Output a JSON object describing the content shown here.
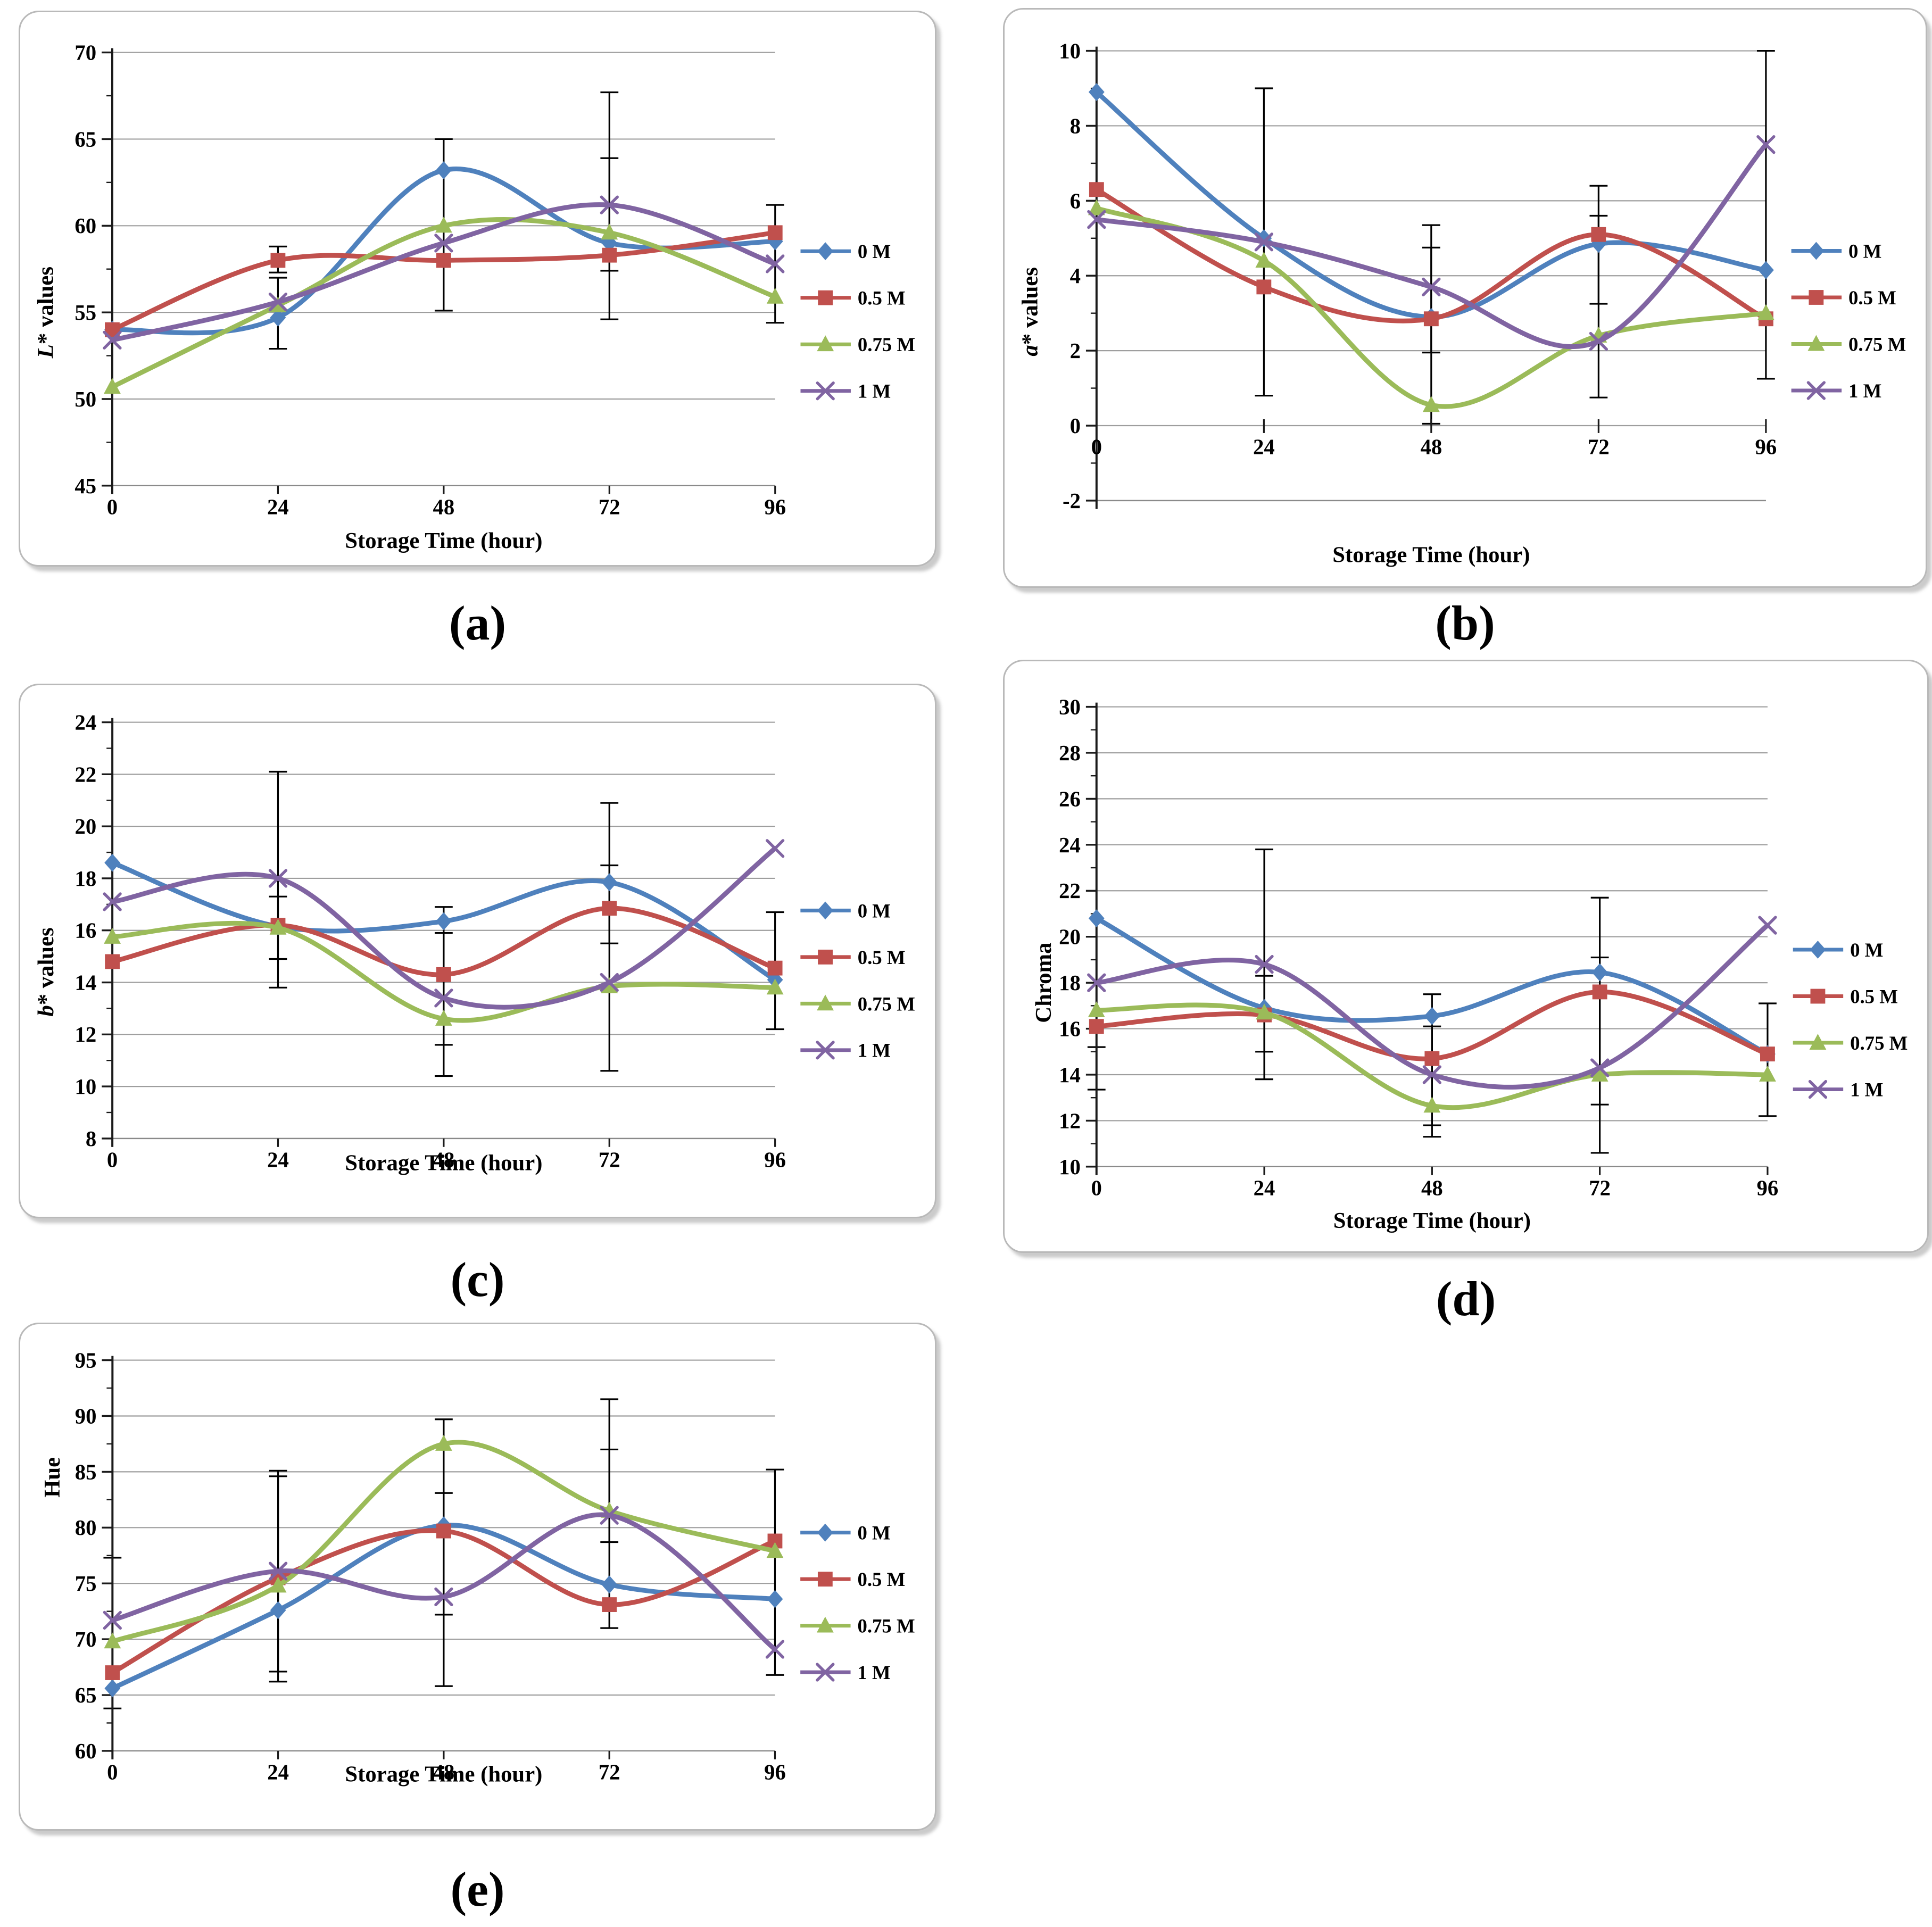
{
  "figure": {
    "background": "#ffffff",
    "series_colors": {
      "0 M": "#4F81BD",
      "0.5 M": "#C0504D",
      "0.75 M": "#9BBB59",
      "1 M": "#8064A2"
    },
    "error_bar_color": "#000000",
    "gridline_color": "#9e9e9e",
    "axis_color": "#1a1a1a"
  },
  "chart_data": [
    {
      "id": "a",
      "panel_label": "(a)",
      "type": "line",
      "x": [
        0,
        24,
        48,
        72,
        96
      ],
      "xlabel": "Storage Time (hour)",
      "ylabel": "L* values",
      "ylabel_italic_first": true,
      "ylim": [
        45,
        70
      ],
      "ytick_step": 5,
      "xaxis_at": null,
      "grid": true,
      "legend_position": "right",
      "series": [
        {
          "name": "0 M",
          "marker": "diamond",
          "color": "#4F81BD",
          "values": [
            54.0,
            54.7,
            63.2,
            59.0,
            59.1
          ]
        },
        {
          "name": "0.5 M",
          "marker": "square",
          "color": "#C0504D",
          "values": [
            54.0,
            58.0,
            58.0,
            58.3,
            59.6
          ]
        },
        {
          "name": "0.75 M",
          "marker": "triangle",
          "color": "#9BBB59",
          "values": [
            50.7,
            55.4,
            60.0,
            59.6,
            55.9
          ]
        },
        {
          "name": "1 M",
          "marker": "x",
          "color": "#8064A2",
          "values": [
            53.4,
            55.6,
            59.0,
            61.2,
            57.8
          ]
        }
      ],
      "error_bars": [
        [
          24,
          52.9,
          57.0
        ],
        [
          24,
          57.3,
          58.8
        ],
        [
          48,
          55.1,
          65.0
        ],
        [
          72,
          54.6,
          67.7
        ],
        [
          72,
          57.4,
          63.9
        ],
        [
          96,
          54.4,
          61.2
        ]
      ]
    },
    {
      "id": "b",
      "panel_label": "(b)",
      "type": "line",
      "x": [
        0,
        24,
        48,
        72,
        96
      ],
      "xlabel": "Storage Time (hour)",
      "ylabel": "a* values",
      "ylabel_italic_first": true,
      "ylim": [
        -2,
        10
      ],
      "ytick_step": 2,
      "xaxis_at": 0,
      "grid": true,
      "legend_position": "right",
      "series": [
        {
          "name": "0 M",
          "marker": "diamond",
          "color": "#4F81BD",
          "values": [
            8.9,
            5.0,
            2.9,
            4.85,
            4.15
          ]
        },
        {
          "name": "0.5 M",
          "marker": "square",
          "color": "#C0504D",
          "values": [
            6.3,
            3.7,
            2.85,
            5.1,
            2.85
          ]
        },
        {
          "name": "0.75 M",
          "marker": "triangle",
          "color": "#9BBB59",
          "values": [
            5.8,
            4.4,
            0.55,
            2.4,
            3.0
          ]
        },
        {
          "name": "1 M",
          "marker": "x",
          "color": "#8064A2",
          "values": [
            5.5,
            4.9,
            3.7,
            2.25,
            7.5
          ]
        }
      ],
      "error_bars": [
        [
          24,
          0.8,
          9.0
        ],
        [
          48,
          0.05,
          5.35
        ],
        [
          48,
          1.95,
          4.75
        ],
        [
          72,
          0.75,
          6.4
        ],
        [
          72,
          3.25,
          5.6
        ],
        [
          96,
          1.25,
          10.0
        ]
      ]
    },
    {
      "id": "c",
      "panel_label": "(c)",
      "type": "line",
      "x": [
        0,
        24,
        48,
        72,
        96
      ],
      "xlabel": "Storage Time (hour)",
      "ylabel": "b* values",
      "ylabel_italic_first": true,
      "ylim": [
        8,
        24
      ],
      "ytick_step": 2,
      "xaxis_at": null,
      "grid": true,
      "legend_position": "right",
      "series": [
        {
          "name": "0 M",
          "marker": "diamond",
          "color": "#4F81BD",
          "values": [
            18.6,
            16.15,
            16.35,
            17.85,
            14.1
          ]
        },
        {
          "name": "0.5 M",
          "marker": "square",
          "color": "#C0504D",
          "values": [
            14.8,
            16.2,
            14.3,
            16.85,
            14.55
          ]
        },
        {
          "name": "0.75 M",
          "marker": "triangle",
          "color": "#9BBB59",
          "values": [
            15.75,
            16.1,
            12.6,
            13.85,
            13.8
          ]
        },
        {
          "name": "1 M",
          "marker": "x",
          "color": "#8064A2",
          "values": [
            17.1,
            18.0,
            13.4,
            14.0,
            19.15
          ]
        }
      ],
      "error_bars": [
        [
          24,
          13.8,
          22.1
        ],
        [
          24,
          14.9,
          17.3
        ],
        [
          48,
          10.4,
          16.9
        ],
        [
          48,
          11.6,
          15.9
        ],
        [
          72,
          10.6,
          20.9
        ],
        [
          72,
          15.5,
          18.5
        ],
        [
          96,
          12.2,
          16.7
        ]
      ]
    },
    {
      "id": "d",
      "panel_label": "(d)",
      "type": "line",
      "x": [
        0,
        24,
        48,
        72,
        96
      ],
      "xlabel": "Storage Time (hour)",
      "ylabel": "Chroma",
      "ylabel_italic_first": false,
      "ylim": [
        10,
        30
      ],
      "ytick_step": 2,
      "xaxis_at": null,
      "grid": true,
      "legend_position": "right",
      "series": [
        {
          "name": "0 M",
          "marker": "diamond",
          "color": "#4F81BD",
          "values": [
            20.8,
            16.9,
            16.55,
            18.45,
            14.9
          ]
        },
        {
          "name": "0.5 M",
          "marker": "square",
          "color": "#C0504D",
          "values": [
            16.1,
            16.6,
            14.7,
            17.6,
            14.9
          ]
        },
        {
          "name": "0.75 M",
          "marker": "triangle",
          "color": "#9BBB59",
          "values": [
            16.8,
            16.7,
            12.65,
            14.0,
            14.0
          ]
        },
        {
          "name": "1 M",
          "marker": "x",
          "color": "#8064A2",
          "values": [
            18.0,
            18.8,
            14.0,
            14.3,
            20.5
          ]
        }
      ],
      "error_bars": [
        [
          0,
          13.35,
          15.2
        ],
        [
          24,
          13.8,
          23.8
        ],
        [
          24,
          15.0,
          18.3
        ],
        [
          48,
          11.3,
          17.5
        ],
        [
          48,
          11.8,
          16.1
        ],
        [
          72,
          10.6,
          21.7
        ],
        [
          72,
          12.7,
          19.1
        ],
        [
          96,
          12.2,
          17.1
        ]
      ]
    },
    {
      "id": "e",
      "panel_label": "(e)",
      "type": "line",
      "x": [
        0,
        24,
        48,
        72,
        96
      ],
      "xlabel": "Storage Time (hour)",
      "ylabel": "Hue",
      "ylabel_italic_first": false,
      "ylim": [
        60,
        95
      ],
      "ytick_step": 5,
      "xaxis_at": null,
      "grid": true,
      "legend_position": "right",
      "series": [
        {
          "name": "0 M",
          "marker": "diamond",
          "color": "#4F81BD",
          "values": [
            65.6,
            72.6,
            80.2,
            74.9,
            73.6
          ]
        },
        {
          "name": "0.5 M",
          "marker": "square",
          "color": "#C0504D",
          "values": [
            67.0,
            75.5,
            79.7,
            73.1,
            78.8
          ]
        },
        {
          "name": "0.75 M",
          "marker": "triangle",
          "color": "#9BBB59",
          "values": [
            69.8,
            74.8,
            87.5,
            81.5,
            77.9
          ]
        },
        {
          "name": "1 M",
          "marker": "x",
          "color": "#8064A2",
          "values": [
            71.7,
            76.1,
            73.8,
            81.1,
            69.1
          ]
        }
      ],
      "error_bars": [
        [
          0,
          63.8,
          77.3
        ],
        [
          24,
          66.2,
          85.1
        ],
        [
          24,
          67.1,
          84.6
        ],
        [
          48,
          65.8,
          89.7
        ],
        [
          48,
          72.2,
          83.1
        ],
        [
          72,
          71.0,
          91.5
        ],
        [
          72,
          78.7,
          87.0
        ],
        [
          96,
          66.8,
          85.2
        ]
      ]
    }
  ]
}
